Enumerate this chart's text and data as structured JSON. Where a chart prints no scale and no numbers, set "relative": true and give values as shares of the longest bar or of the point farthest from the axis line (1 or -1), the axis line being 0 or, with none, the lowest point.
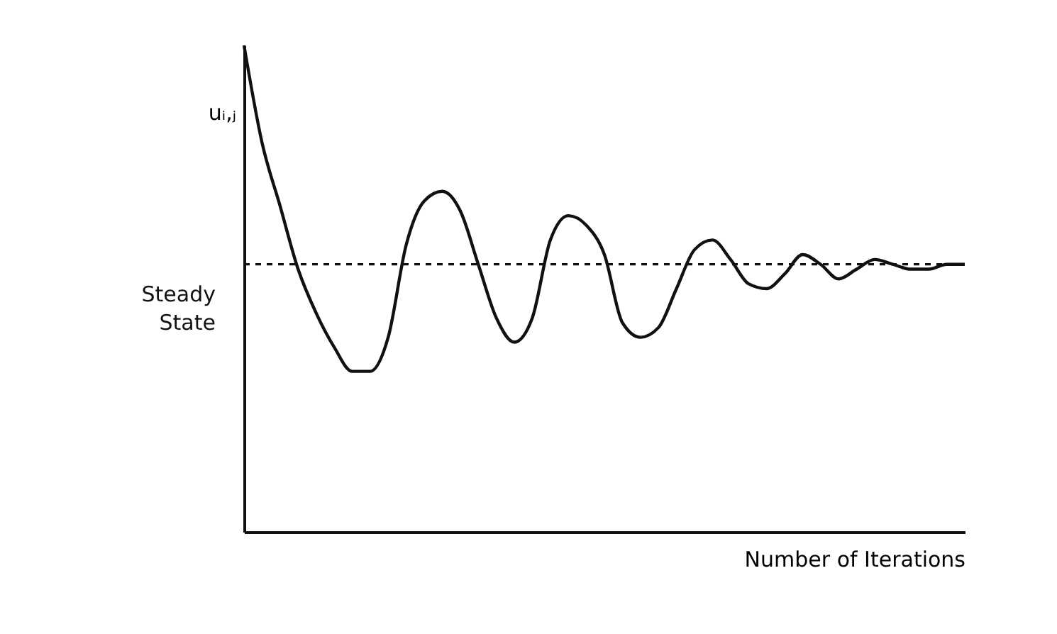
{
  "chart_data": {
    "type": "line",
    "relative": true,
    "xlabel": "Number of Iterations",
    "ylabel": "uᵢ,ⱼ",
    "categories": [
      null,
      null,
      null,
      null,
      null,
      null,
      null,
      null,
      null,
      null,
      null,
      null,
      null,
      null,
      null,
      null,
      null,
      null,
      null,
      null,
      null,
      null,
      null,
      null,
      null,
      null,
      null,
      null,
      null,
      null,
      null,
      null,
      null,
      null,
      null,
      null,
      null,
      null,
      null,
      null,
      null
    ],
    "series": [
      {
        "color": "#111111",
        "values": [
          1.0,
          0.8,
          0.67,
          0.54,
          0.45,
          0.38,
          0.33,
          0.33,
          0.4,
          0.59,
          0.68,
          0.7,
          0.66,
          0.55,
          0.44,
          0.39,
          0.44,
          0.6,
          0.65,
          0.63,
          0.57,
          0.43,
          0.4,
          0.42,
          0.5,
          0.58,
          0.6,
          0.56,
          0.51,
          0.5,
          0.53,
          0.57,
          0.55,
          0.52,
          0.54,
          0.56,
          0.55,
          0.54,
          0.54,
          0.55,
          0.55
        ]
      }
    ],
    "ref_lines": [
      {
        "axis": "y",
        "value": 0.55,
        "label": "Steady State",
        "line_style": "dashed",
        "color": "#111111"
      }
    ],
    "grid": false
  }
}
